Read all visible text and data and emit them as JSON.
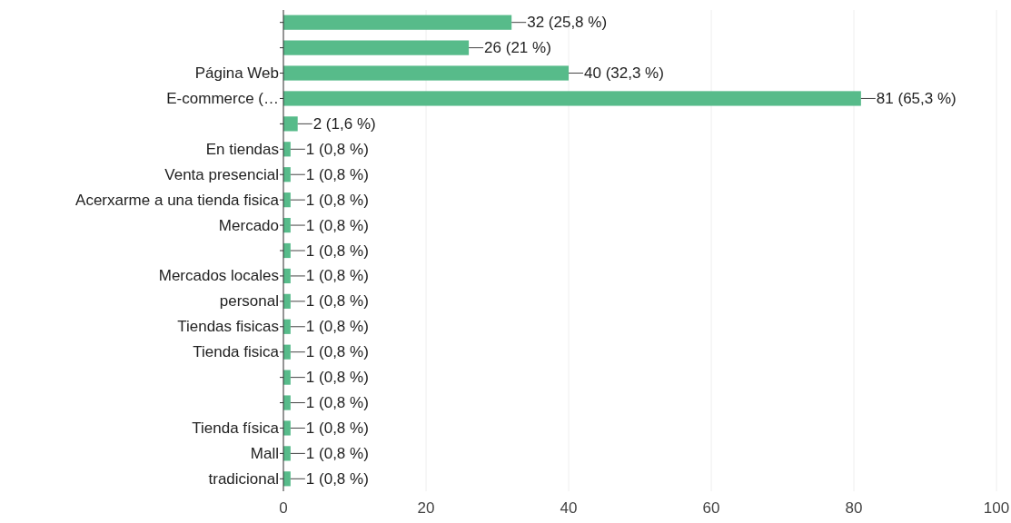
{
  "chart_data": {
    "type": "bar",
    "orientation": "horizontal",
    "categories": [
      null,
      null,
      "Página Web",
      "E-commerce (…",
      null,
      "En tiendas",
      "Venta presencial",
      "Acerxarme a una tienda fisica",
      "Mercado",
      null,
      "Mercados locales",
      "personal",
      "Tiendas fisicas",
      "Tienda fisica",
      null,
      null,
      "Tienda física",
      "Mall",
      "tradicional"
    ],
    "values": [
      32,
      26,
      40,
      81,
      2,
      1,
      1,
      1,
      1,
      1,
      1,
      1,
      1,
      1,
      1,
      1,
      1,
      1,
      1
    ],
    "value_labels": [
      "32 (25,8 %)",
      "26 (21 %)",
      "40 (32,3 %)",
      "81 (65,3 %)",
      "2 (1,6 %)",
      "1 (0,8 %)",
      "1 (0,8 %)",
      "1 (0,8 %)",
      "1 (0,8 %)",
      "1 (0,8 %)",
      "1 (0,8 %)",
      "1 (0,8 %)",
      "1 (0,8 %)",
      "1 (0,8 %)",
      "1 (0,8 %)",
      "1 (0,8 %)",
      "1 (0,8 %)",
      "1 (0,8 %)",
      "1 (0,8 %)"
    ],
    "color": "#57bb8a",
    "xlim": [
      0,
      100
    ],
    "xticks": [
      0,
      20,
      40,
      60,
      80,
      100
    ],
    "grid": "x"
  }
}
